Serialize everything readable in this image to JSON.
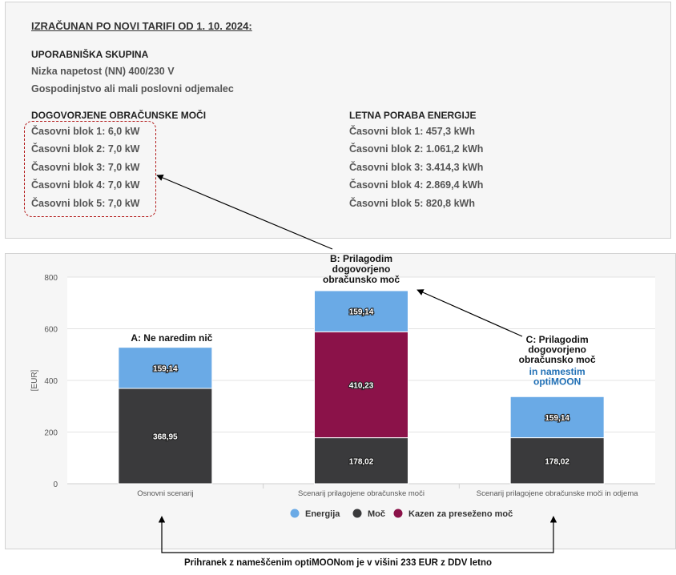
{
  "info": {
    "heading": "IZRAČUNAN PO NOVI TARIFI OD 1. 10. 2024:",
    "group_label": "UPORABNIŠKA SKUPINA",
    "group_lines": [
      "Nizka napetost (NN) 400/230 V",
      "Gospodinjstvo ali mali poslovni odjemalec"
    ],
    "power_label": "DOGOVORJENE OBRAČUNSKE MOČI",
    "power_blocks": [
      "Časovni blok 1: 6,0 kW",
      "Časovni blok 2: 7,0 kW",
      "Časovni blok 3: 7,0 kW",
      "Časovni blok 4: 7,0 kW",
      "Časovni blok 5: 7,0 kW"
    ],
    "energy_label": "LETNA PORABA ENERGIJE",
    "energy_blocks": [
      "Časovni blok 1: 457,3 kWh",
      "Časovni blok 2: 1.061,2 kWh",
      "Časovni blok 3: 3.414,3 kWh",
      "Časovni blok 4: 2.869,4 kWh",
      "Časovni blok 5: 820,8 kWh"
    ]
  },
  "chart_data": {
    "type": "bar",
    "stacked": true,
    "categories": [
      "Osnovni scenarij",
      "Scenarij prilagojene obračunske moči",
      "Scenarij prilagojene obračunske moči in odjema"
    ],
    "series": [
      {
        "name": "Moč",
        "values": [
          368.95,
          178.02,
          178.02
        ],
        "labels": [
          "368,95",
          "178,02",
          "178,02"
        ],
        "color": "#3a3a3c"
      },
      {
        "name": "Kazen za preseženo moč",
        "values": [
          0,
          410.23,
          0
        ],
        "labels": [
          "",
          "410,23",
          ""
        ],
        "color": "#8b1249"
      },
      {
        "name": "Energija",
        "values": [
          159.14,
          159.14,
          159.14
        ],
        "labels": [
          "159,14",
          "159,14",
          "159,14"
        ],
        "color": "#6aaae6"
      }
    ],
    "legend_order": [
      "Energija",
      "Moč",
      "Kazen za preseženo moč"
    ],
    "ylabel": "[EUR]",
    "ylim": [
      0,
      800
    ],
    "yticks": [
      0,
      200,
      400,
      600,
      800
    ],
    "grid": true,
    "legend_position": "bottom",
    "annotations": {
      "a": "A: Ne naredim nič",
      "b": [
        "B: Prilagodim",
        "dogovorjeno",
        "obračunsko moč"
      ],
      "c": [
        "C: Prilagodim",
        "dogovorjeno",
        "obračunsko moč"
      ],
      "c_blue": [
        "in namestim",
        "optiMOON"
      ]
    }
  },
  "footer": "Prihranek z nameščenim optiMOONom je v višini 233 EUR z DDV letno",
  "colors": {
    "accent_blue": "#1f6fb5",
    "arrow": "#000000",
    "dash_red": "#b31b1b"
  }
}
